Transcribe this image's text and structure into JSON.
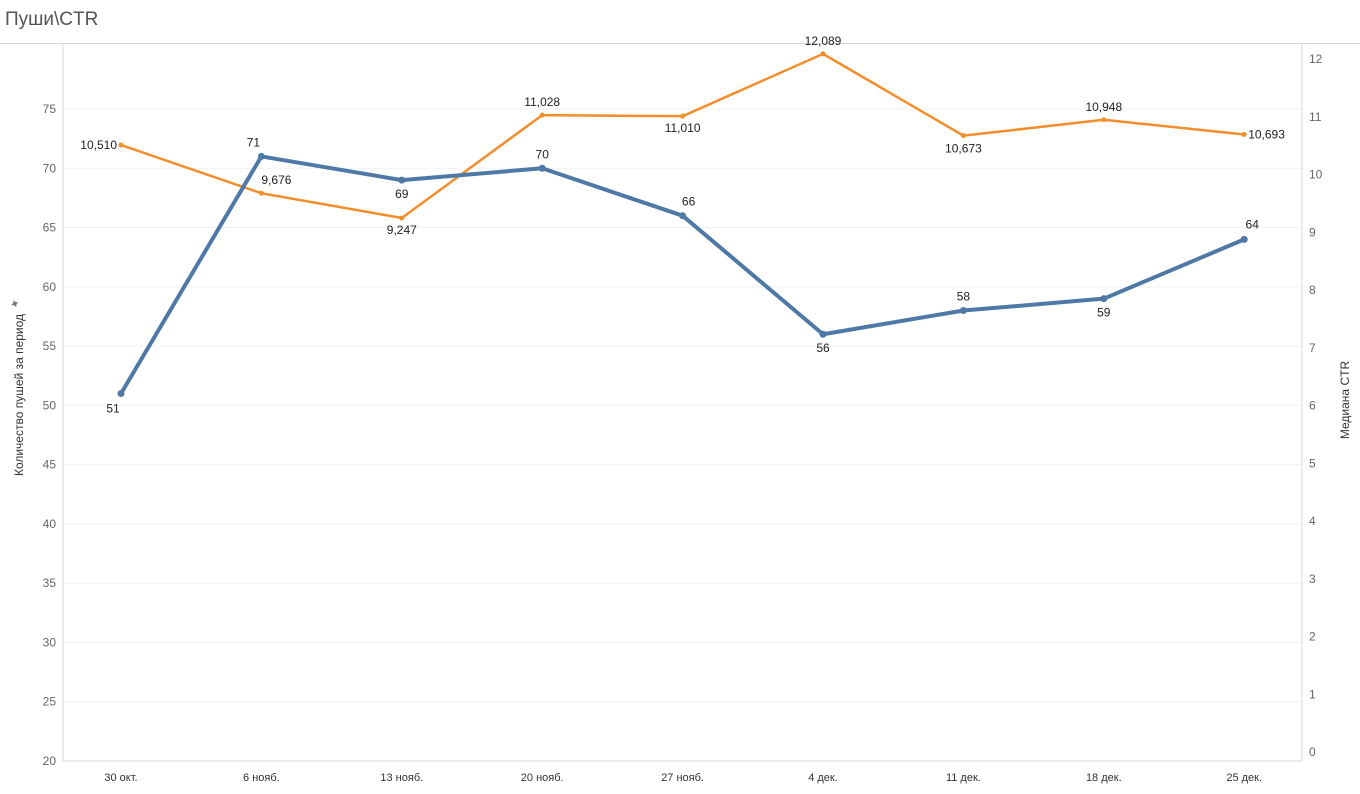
{
  "title": "Пуши\\CTR",
  "chart_data": {
    "type": "line",
    "categories": [
      "30 окт.",
      "6 нояб.",
      "13 нояб.",
      "20 нояб.",
      "27 нояб.",
      "4 дек.",
      "11 дек.",
      "18 дек.",
      "25 дек."
    ],
    "ylabel_left": "Количество пушей за период",
    "ylabel_right": "Медиана CTR",
    "ylim_left": [
      20,
      75
    ],
    "ylim_right": [
      0,
      12
    ],
    "yticks_left": [
      20,
      25,
      30,
      35,
      40,
      45,
      50,
      55,
      60,
      65,
      70,
      75
    ],
    "yticks_right": [
      0,
      1,
      2,
      3,
      4,
      5,
      6,
      7,
      8,
      9,
      10,
      11,
      12
    ],
    "grid": true,
    "series": [
      {
        "axis": "left",
        "color": "#4e79a7",
        "values": [
          51,
          71,
          69,
          70,
          66,
          56,
          58,
          59,
          64
        ],
        "labels": [
          "51",
          "71",
          "69",
          "70",
          "66",
          "56",
          "58",
          "59",
          "64"
        ]
      },
      {
        "axis": "right",
        "color": "#f28e2b",
        "values": [
          10.51,
          9.676,
          9.247,
          11.028,
          11.01,
          12.089,
          10.673,
          10.948,
          10.693
        ],
        "labels": [
          "10,510",
          "9,676",
          "9,247",
          "11,028",
          "11,010",
          "12,089",
          "10,673",
          "10,948",
          "10,693"
        ]
      }
    ]
  }
}
